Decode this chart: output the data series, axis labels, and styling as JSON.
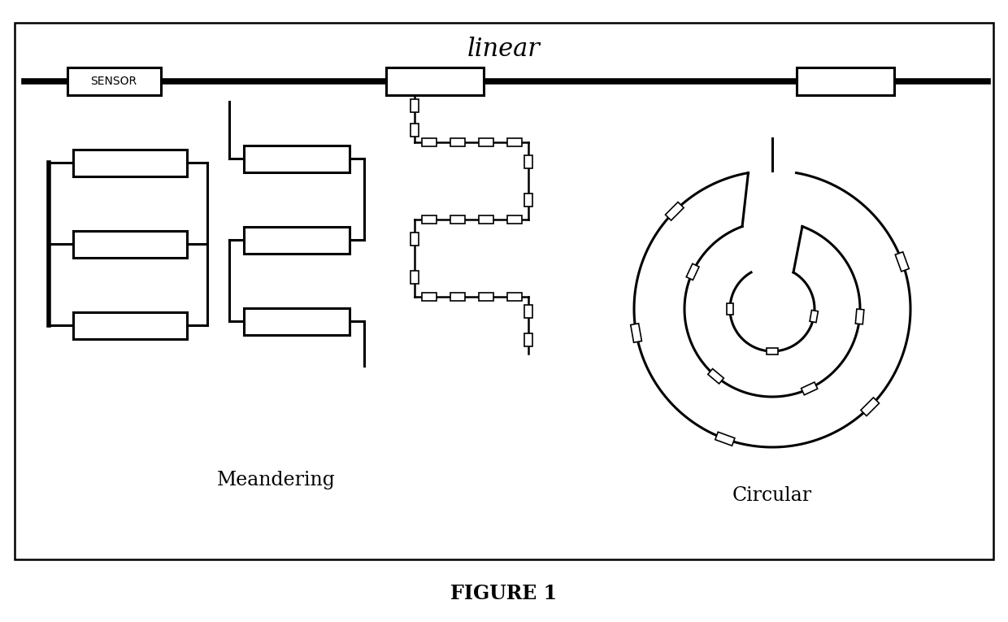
{
  "title": "FIGURE 1",
  "background_color": "#ffffff",
  "line_color": "#000000",
  "sensor_label": "SENSOR",
  "linear_label": "linear",
  "meandering_label": "Meandering",
  "circular_label": "Circular",
  "fig_w": 12.4,
  "fig_h": 7.65,
  "dpi": 100
}
